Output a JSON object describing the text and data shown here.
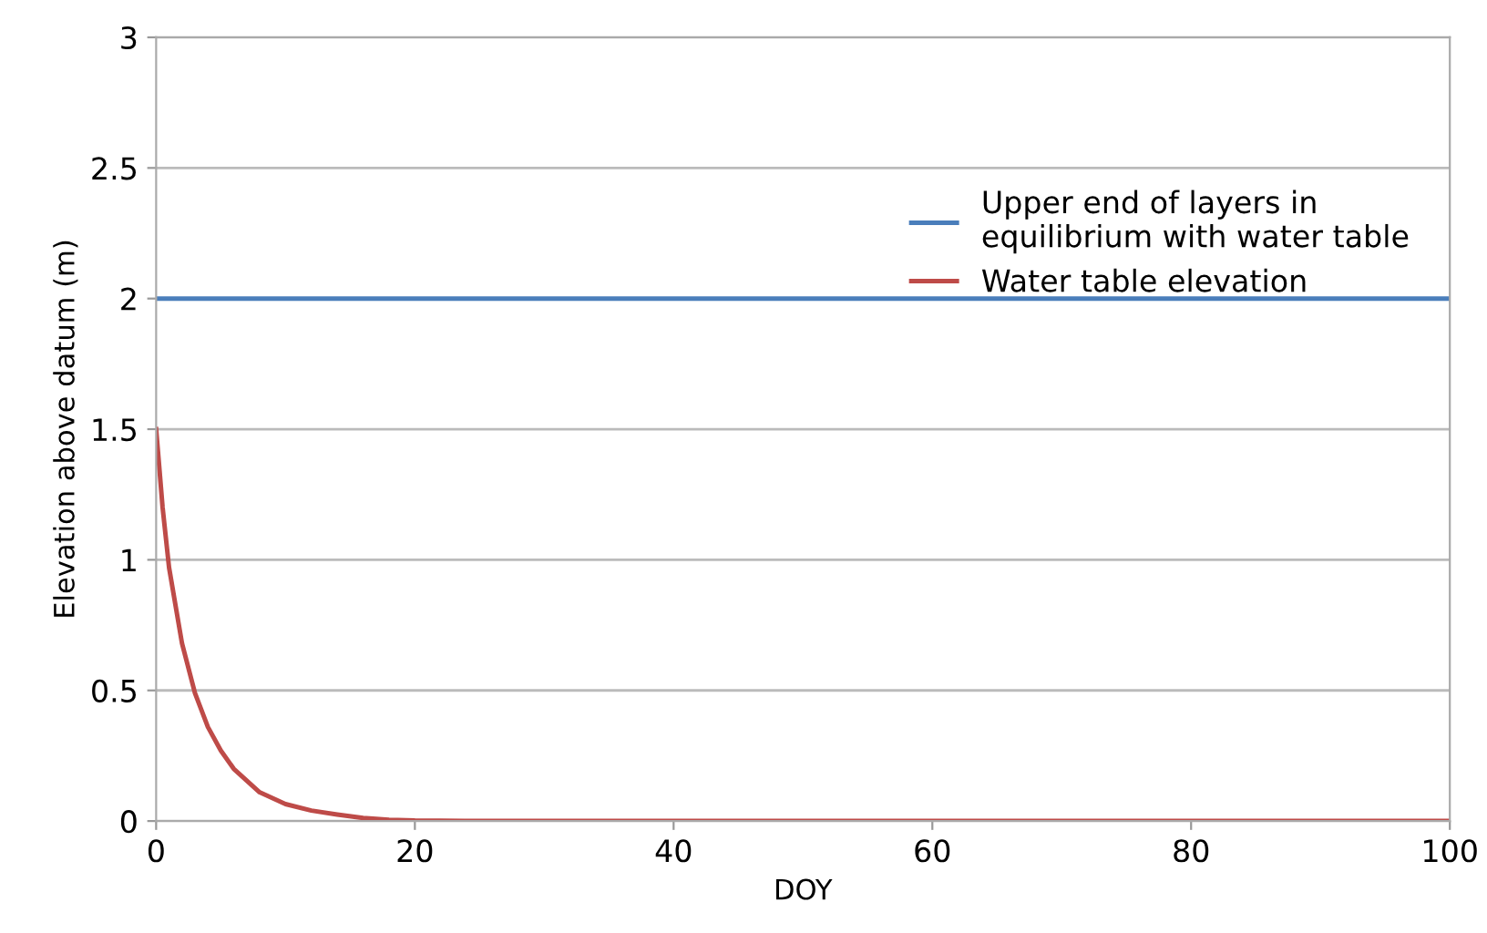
{
  "chart_data": {
    "type": "line",
    "xlabel": "DOY",
    "ylabel": "Elevation above datum (m)",
    "xlim": [
      0,
      100
    ],
    "ylim": [
      0,
      3
    ],
    "xticks": [
      0,
      20,
      40,
      60,
      80,
      100
    ],
    "yticks": [
      0,
      0.5,
      1,
      1.5,
      2,
      2.5,
      3
    ],
    "grid": "y",
    "legend": "top right",
    "line_style": "solid",
    "marker": "none",
    "series": [
      {
        "name": "Upper end of layers in\nequilibrium with water table",
        "color": "#4a7ebb",
        "x": [
          0,
          100
        ],
        "values": [
          2,
          2
        ]
      },
      {
        "name": "Water table elevation",
        "color": "#be4b48",
        "x": [
          0,
          0.5,
          1,
          2,
          3,
          4,
          5,
          6,
          8,
          10,
          12,
          14,
          16,
          18,
          20,
          25,
          100
        ],
        "values": [
          1.5,
          1.2,
          0.97,
          0.68,
          0.49,
          0.36,
          0.27,
          0.2,
          0.11,
          0.065,
          0.04,
          0.025,
          0.012,
          0.005,
          0.002,
          0,
          0
        ]
      }
    ]
  }
}
